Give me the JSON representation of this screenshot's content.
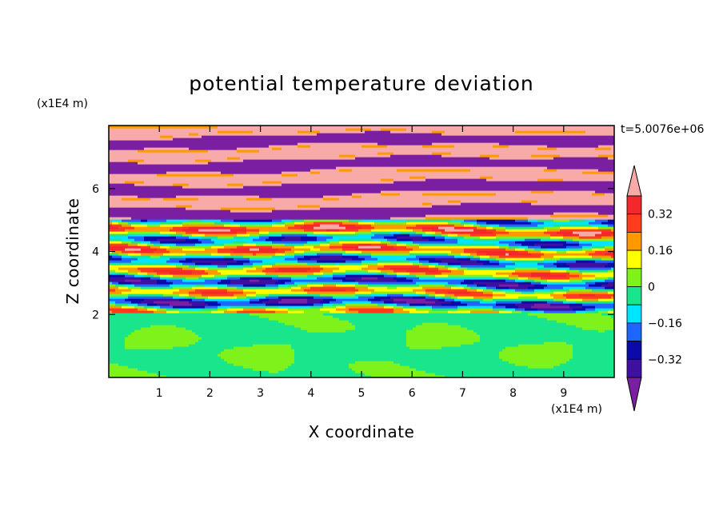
{
  "chart_data": {
    "type": "heatmap",
    "title": "potential temperature deviation",
    "xlabel": "X coordinate",
    "ylabel": "Z coordinate",
    "x_unit": "(x1E4 m)",
    "y_unit": "(x1E4 m)",
    "time_label": "t=5.0076e+06",
    "xlim": [
      0,
      10
    ],
    "ylim": [
      0,
      8
    ],
    "x_ticks": [
      1,
      2,
      3,
      4,
      5,
      6,
      7,
      8,
      9
    ],
    "y_ticks": [
      2,
      4,
      6
    ],
    "colorbar": {
      "levels": [
        -0.4,
        -0.32,
        -0.24,
        -0.16,
        -0.08,
        0,
        0.08,
        0.16,
        0.24,
        0.32,
        0.4
      ],
      "labels": [
        "0.32",
        "0.16",
        "0",
        "−0.16",
        "−0.32"
      ],
      "label_values": [
        0.32,
        0.16,
        0,
        -0.16,
        -0.32
      ],
      "colors": [
        "#7b1fa2",
        "#3f0fa0",
        "#0a0aa8",
        "#1e66ff",
        "#00e5ff",
        "#19e68c",
        "#7ff21a",
        "#ffff00",
        "#ff9900",
        "#ff3c1e",
        "#f2282d",
        "#f8aaa8"
      ],
      "extend": "both"
    },
    "regions": [
      {
        "z_range": [
          0,
          2
        ],
        "dominant": [
          0.04,
          -0.02
        ]
      },
      {
        "z_range": [
          2,
          5
        ],
        "dominant": [
          -0.2,
          0.3
        ]
      },
      {
        "z_range": [
          5,
          8
        ],
        "dominant": [
          0.45,
          -0.45
        ]
      }
    ]
  }
}
